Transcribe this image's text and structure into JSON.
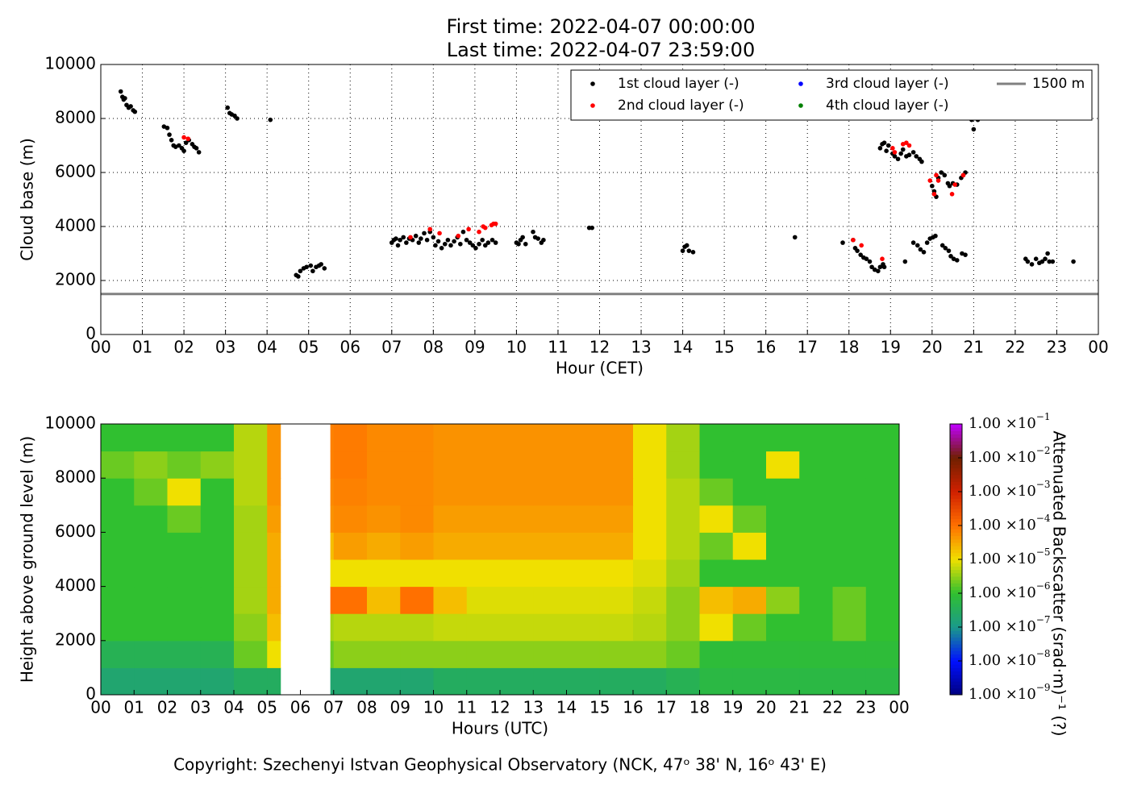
{
  "chart_data": [
    {
      "type": "scatter",
      "title": "First time: 2022-04-07 00:00:00",
      "subtitle": "Last time: 2022-04-07 23:59:00",
      "xlabel": "Hour (CET)",
      "ylabel": "Cloud base (m)",
      "xlim": [
        0,
        24
      ],
      "ylim": [
        0,
        10000
      ],
      "xticks": [
        {
          "value": 0,
          "label": "00"
        },
        {
          "value": 1,
          "label": "01"
        },
        {
          "value": 2,
          "label": "02"
        },
        {
          "value": 3,
          "label": "03"
        },
        {
          "value": 4,
          "label": "04"
        },
        {
          "value": 5,
          "label": "05"
        },
        {
          "value": 6,
          "label": "06"
        },
        {
          "value": 7,
          "label": "07"
        },
        {
          "value": 8,
          "label": "08"
        },
        {
          "value": 9,
          "label": "09"
        },
        {
          "value": 10,
          "label": "10"
        },
        {
          "value": 11,
          "label": "11"
        },
        {
          "value": 12,
          "label": "12"
        },
        {
          "value": 13,
          "label": "13"
        },
        {
          "value": 14,
          "label": "14"
        },
        {
          "value": 15,
          "label": "15"
        },
        {
          "value": 16,
          "label": "16"
        },
        {
          "value": 17,
          "label": "17"
        },
        {
          "value": 18,
          "label": "18"
        },
        {
          "value": 19,
          "label": "19"
        },
        {
          "value": 20,
          "label": "20"
        },
        {
          "value": 21,
          "label": "21"
        },
        {
          "value": 22,
          "label": "22"
        },
        {
          "value": 23,
          "label": "23"
        },
        {
          "value": 24,
          "label": "00"
        }
      ],
      "yticks": [
        0,
        2000,
        4000,
        6000,
        8000,
        10000
      ],
      "grid": true,
      "legend": "upper right",
      "legend_ncol": 3,
      "series": [
        {
          "name": "1st cloud layer (-)",
          "color": "#000000",
          "x": [
            0.48,
            0.52,
            0.55,
            0.58,
            0.62,
            0.67,
            0.72,
            0.78,
            0.82,
            1.52,
            1.6,
            1.65,
            1.7,
            1.75,
            1.8,
            1.88,
            1.95,
            2.0,
            2.05,
            2.12,
            2.2,
            2.25,
            2.3,
            2.36,
            3.05,
            3.1,
            3.15,
            3.22,
            3.28,
            4.08,
            4.7,
            4.75,
            4.8,
            4.88,
            4.95,
            5.05,
            5.1,
            5.18,
            5.25,
            5.3,
            5.38,
            7.0,
            7.05,
            7.1,
            7.15,
            7.2,
            7.28,
            7.35,
            7.42,
            7.5,
            7.58,
            7.65,
            7.7,
            7.78,
            7.85,
            7.92,
            8.0,
            8.05,
            8.12,
            8.2,
            8.28,
            8.35,
            8.42,
            8.5,
            8.58,
            8.65,
            8.72,
            8.8,
            8.88,
            8.95,
            9.02,
            9.1,
            9.18,
            9.25,
            9.32,
            9.42,
            9.5,
            10.0,
            10.05,
            10.1,
            10.15,
            10.22,
            10.4,
            10.45,
            10.52,
            10.6,
            10.65,
            11.75,
            11.82,
            14.0,
            14.05,
            14.1,
            14.15,
            14.25,
            16.7,
            17.85,
            18.1,
            18.15,
            18.2,
            18.28,
            18.35,
            18.42,
            18.5,
            18.55,
            18.62,
            18.7,
            18.75,
            18.82,
            18.85,
            18.75,
            18.8,
            18.85,
            18.9,
            18.95,
            19.05,
            19.1,
            19.18,
            19.25,
            19.3,
            19.38,
            19.45,
            19.55,
            19.62,
            19.7,
            19.75,
            19.35,
            19.55,
            19.65,
            19.72,
            19.8,
            19.88,
            19.95,
            20.02,
            20.08,
            20.0,
            20.05,
            20.1,
            20.15,
            20.22,
            20.3,
            20.38,
            20.42,
            20.5,
            20.6,
            20.7,
            20.75,
            20.8,
            20.25,
            20.32,
            20.4,
            20.45,
            20.52,
            20.6,
            20.72,
            20.8,
            20.95,
            21.0,
            21.1,
            22.25,
            22.3,
            22.4,
            22.5,
            22.58,
            22.65,
            22.72,
            22.78,
            22.82,
            22.9,
            23.4
          ],
          "values": [
            9000,
            8800,
            8700,
            8750,
            8500,
            8400,
            8450,
            8300,
            8250,
            7700,
            7650,
            7400,
            7200,
            7000,
            6950,
            7000,
            6900,
            6800,
            7100,
            7200,
            7050,
            6950,
            6900,
            6750,
            8400,
            8200,
            8150,
            8100,
            8000,
            7950,
            2200,
            2150,
            2350,
            2450,
            2500,
            2550,
            2350,
            2500,
            2550,
            2600,
            2450,
            3400,
            3500,
            3550,
            3300,
            3500,
            3600,
            3400,
            3550,
            3500,
            3650,
            3400,
            3550,
            3750,
            3500,
            3800,
            3600,
            3300,
            3450,
            3200,
            3350,
            3500,
            3300,
            3450,
            3600,
            3350,
            3800,
            3500,
            3400,
            3300,
            3200,
            3350,
            3500,
            3300,
            3400,
            3500,
            3400,
            3400,
            3350,
            3500,
            3600,
            3350,
            3800,
            3600,
            3550,
            3400,
            3500,
            3950,
            3950,
            3100,
            3250,
            3300,
            3100,
            3050,
            3600,
            3400,
            3500,
            3200,
            3100,
            2950,
            2850,
            2800,
            2700,
            2500,
            2400,
            2350,
            2500,
            2600,
            2500,
            6900,
            7050,
            7100,
            6800,
            7000,
            6700,
            6600,
            6500,
            6700,
            6850,
            6600,
            6650,
            6750,
            6600,
            6500,
            6400,
            2700,
            3400,
            3300,
            3150,
            3050,
            3400,
            3550,
            3600,
            3650,
            5500,
            5300,
            5100,
            5800,
            6000,
            5900,
            5600,
            5500,
            5600,
            5550,
            5800,
            5900,
            6000,
            3300,
            3200,
            3100,
            2900,
            2800,
            2750,
            3000,
            2950,
            7950,
            7600,
            7950,
            2800,
            2700,
            2600,
            2800,
            2650,
            2700,
            2800,
            3000,
            2700,
            2700,
            2700
          ]
        },
        {
          "name": "2nd cloud layer (-)",
          "color": "#ff0000",
          "x": [
            2.0,
            2.1,
            7.45,
            7.92,
            8.15,
            8.6,
            8.85,
            9.1,
            9.2,
            9.25,
            9.4,
            9.45,
            9.5,
            18.1,
            18.3,
            18.8,
            19.05,
            19.1,
            19.3,
            19.38,
            19.45,
            19.95,
            20.05,
            20.1,
            20.15,
            20.48,
            20.55,
            20.75
          ],
          "values": [
            7300,
            7250,
            3600,
            3900,
            3750,
            3650,
            3900,
            3800,
            4000,
            3950,
            4050,
            4100,
            4100,
            3500,
            3300,
            2800,
            6900,
            6750,
            7050,
            7100,
            7000,
            5700,
            5200,
            5900,
            5700,
            5200,
            5550,
            5900
          ]
        },
        {
          "name": "3rd cloud layer (-)",
          "color": "#0000ff",
          "x": [],
          "values": []
        },
        {
          "name": "4th cloud layer (-)",
          "color": "#008000",
          "x": [],
          "values": []
        },
        {
          "name": "1500 m",
          "color": "#808080",
          "kind": "hline",
          "value": 1500
        }
      ]
    },
    {
      "type": "heatmap",
      "xlabel": "Hours (UTC)",
      "ylabel": "Height above ground level (m)",
      "xlim": [
        0,
        24
      ],
      "ylim": [
        0,
        10000
      ],
      "xticks": [
        {
          "value": 0,
          "label": "00"
        },
        {
          "value": 1,
          "label": "01"
        },
        {
          "value": 2,
          "label": "02"
        },
        {
          "value": 3,
          "label": "03"
        },
        {
          "value": 4,
          "label": "04"
        },
        {
          "value": 5,
          "label": "05"
        },
        {
          "value": 6,
          "label": "06"
        },
        {
          "value": 7,
          "label": "07"
        },
        {
          "value": 8,
          "label": "08"
        },
        {
          "value": 9,
          "label": "09"
        },
        {
          "value": 10,
          "label": "10"
        },
        {
          "value": 11,
          "label": "11"
        },
        {
          "value": 12,
          "label": "12"
        },
        {
          "value": 13,
          "label": "13"
        },
        {
          "value": 14,
          "label": "14"
        },
        {
          "value": 15,
          "label": "15"
        },
        {
          "value": 16,
          "label": "16"
        },
        {
          "value": 17,
          "label": "17"
        },
        {
          "value": 18,
          "label": "18"
        },
        {
          "value": 19,
          "label": "19"
        },
        {
          "value": 20,
          "label": "20"
        },
        {
          "value": 21,
          "label": "21"
        },
        {
          "value": 22,
          "label": "22"
        },
        {
          "value": 23,
          "label": "23"
        },
        {
          "value": 24,
          "label": "00"
        }
      ],
      "yticks": [
        0,
        2000,
        4000,
        6000,
        8000,
        10000
      ],
      "x_edges": [
        0,
        1,
        2,
        3,
        4,
        5,
        5.4,
        6.9,
        7,
        8,
        9,
        10,
        11,
        12,
        13,
        14,
        15,
        16,
        17,
        18,
        19,
        20,
        21,
        22,
        23,
        24
      ],
      "y_edges": [
        0,
        1000,
        2000,
        3000,
        4000,
        5000,
        6000,
        7000,
        8000,
        9000,
        10000
      ],
      "z": [
        [
          2e-07,
          2e-07,
          2e-07,
          2e-07,
          3e-07,
          3e-07,
          null,
          2e-07,
          2e-07,
          2e-07,
          2e-07,
          3e-07,
          3e-07,
          3e-07,
          3e-07,
          3e-07,
          3e-07,
          3e-07,
          4e-07,
          6e-07,
          6e-07,
          6e-07,
          6e-07,
          6e-07,
          6e-07
        ],
        [
          4e-07,
          4e-07,
          4e-07,
          4e-07,
          2e-06,
          1e-05,
          null,
          2e-06,
          3e-06,
          3e-06,
          3e-06,
          3e-06,
          3e-06,
          3e-06,
          3e-06,
          3e-06,
          3e-06,
          3e-06,
          2e-06,
          8e-07,
          8e-07,
          8e-07,
          8e-07,
          8e-07,
          8e-07
        ],
        [
          1e-06,
          1e-06,
          1e-06,
          1e-06,
          3e-06,
          2e-05,
          null,
          4e-06,
          5e-06,
          5e-06,
          5e-06,
          6e-06,
          6e-06,
          6e-06,
          6e-06,
          6e-06,
          6e-06,
          5e-06,
          3e-06,
          1e-05,
          2e-06,
          1e-06,
          1e-06,
          2e-06,
          1e-06
        ],
        [
          1e-06,
          1e-06,
          1e-06,
          1e-06,
          4e-06,
          3e-05,
          null,
          0.0001,
          0.0001,
          2e-05,
          0.0001,
          2e-05,
          8e-06,
          8e-06,
          8e-06,
          8e-06,
          8e-06,
          6e-06,
          3e-06,
          2e-05,
          3e-05,
          3e-06,
          1e-06,
          2e-06,
          1e-06
        ],
        [
          1e-06,
          1e-06,
          1e-06,
          1e-06,
          4e-06,
          3e-05,
          null,
          1e-05,
          1e-05,
          1e-05,
          1e-05,
          1e-05,
          1e-05,
          1e-05,
          1e-05,
          1e-05,
          1e-05,
          8e-06,
          4e-06,
          1e-06,
          1e-06,
          1e-06,
          1e-06,
          1e-06,
          1e-06
        ],
        [
          1e-06,
          1e-06,
          1e-06,
          1e-06,
          4e-06,
          3e-05,
          null,
          2e-05,
          4e-05,
          3e-05,
          4e-05,
          3e-05,
          3e-05,
          3e-05,
          3e-05,
          3e-05,
          3e-05,
          1e-05,
          5e-06,
          2e-06,
          1e-05,
          1e-06,
          1e-06,
          1e-06,
          1e-06
        ],
        [
          1e-06,
          1e-06,
          2e-06,
          1e-06,
          4e-06,
          4e-05,
          null,
          5e-05,
          6e-05,
          5e-05,
          6e-05,
          4e-05,
          4e-05,
          4e-05,
          4e-05,
          4e-05,
          4e-05,
          1e-05,
          5e-06,
          1e-05,
          2e-06,
          1e-06,
          1e-06,
          1e-06,
          1e-06
        ],
        [
          1e-06,
          2e-06,
          1e-05,
          1e-06,
          5e-06,
          5e-05,
          null,
          6e-05,
          7e-05,
          6e-05,
          6e-05,
          5e-05,
          5e-05,
          5e-05,
          5e-05,
          5e-05,
          5e-05,
          1e-05,
          5e-06,
          2e-06,
          1e-06,
          1e-06,
          1e-06,
          1e-06,
          1e-06
        ],
        [
          2e-06,
          3e-06,
          2e-06,
          3e-06,
          5e-06,
          5e-05,
          null,
          7e-05,
          8e-05,
          6e-05,
          6e-05,
          5e-05,
          5e-05,
          5e-05,
          5e-05,
          5e-05,
          5e-05,
          1e-05,
          4e-06,
          1e-06,
          1e-06,
          1e-05,
          1e-06,
          1e-06,
          1e-06
        ],
        [
          1e-06,
          1e-06,
          1e-06,
          1e-06,
          5e-06,
          5e-05,
          null,
          7e-05,
          8e-05,
          6e-05,
          6e-05,
          5e-05,
          5e-05,
          5e-05,
          5e-05,
          5e-05,
          5e-05,
          1e-05,
          4e-06,
          1e-06,
          1e-06,
          1e-06,
          1e-06,
          1e-06,
          1e-06
        ]
      ],
      "clim": [
        1e-09,
        0.1
      ],
      "color_log": true,
      "colormap": [
        "#000080",
        "#0010ff",
        "#1a9a8a",
        "#30c030",
        "#f0e000",
        "#ff7000",
        "#d02000",
        "#702000",
        "#c000ff"
      ],
      "colorbar_label": "Attenuated Backscatter (srad·m)⁻¹ (?)",
      "colorbar_ticks": [
        {
          "value": 1e-09,
          "label": "1.00 ×10",
          "exponent": "−9"
        },
        {
          "value": 1e-08,
          "label": "1.00 ×10",
          "exponent": "−8"
        },
        {
          "value": 1e-07,
          "label": "1.00 ×10",
          "exponent": "−7"
        },
        {
          "value": 1e-06,
          "label": "1.00 ×10",
          "exponent": "−6"
        },
        {
          "value": 1e-05,
          "label": "1.00 ×10",
          "exponent": "−5"
        },
        {
          "value": 0.0001,
          "label": "1.00 ×10",
          "exponent": "−4"
        },
        {
          "value": 0.001,
          "label": "1.00 ×10",
          "exponent": "−3"
        },
        {
          "value": 0.01,
          "label": "1.00 ×10",
          "exponent": "−2"
        },
        {
          "value": 0.1,
          "label": "1.00 ×10",
          "exponent": "−1"
        }
      ]
    }
  ],
  "footer": "Copyright: Szechenyi Istvan Geophysical Observatory (NCK, 47ᵒ 38' N, 16ᵒ 43' E)"
}
